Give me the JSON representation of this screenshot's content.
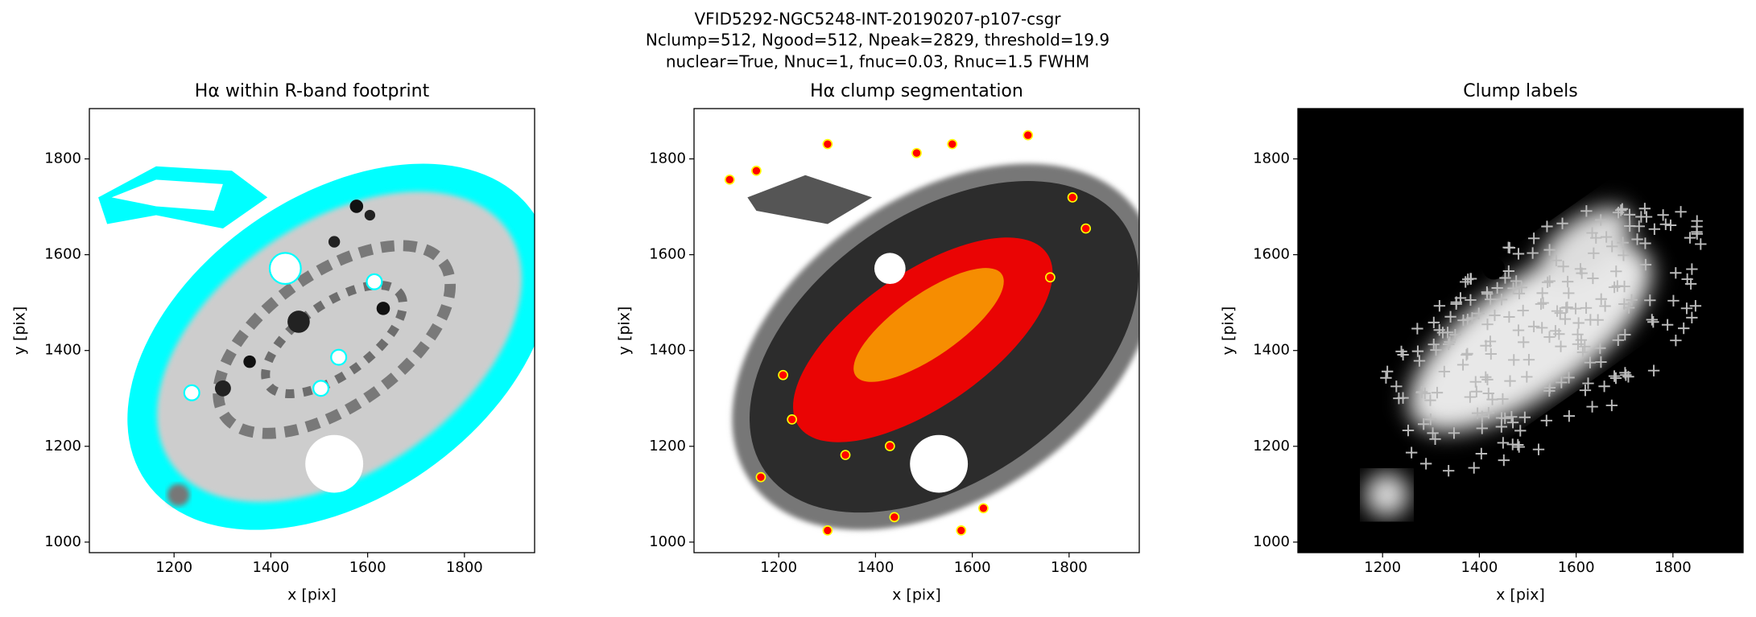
{
  "suptitle": [
    "VFID5292-NGC5248-INT-20190207-p107-csgr",
    "Nclump=512, Ngood=512, Npeak=2829, threshold=19.9",
    "nuclear=True, Nnuc=1, fnuc=0.03, Rnuc=1.5 FWHM"
  ],
  "chart_data": [
    {
      "type": "image",
      "title": "Hα within R-band footprint",
      "xlabel": "x [pix]",
      "ylabel": "y [pix]",
      "xlim": [
        1025,
        1945
      ],
      "ylim": [
        978,
        1905
      ],
      "xticks": [
        1200,
        1400,
        1600,
        1800
      ],
      "yticks": [
        1000,
        1200,
        1400,
        1600,
        1800
      ]
    },
    {
      "type": "image",
      "title": "Hα clump segmentation",
      "xlabel": "x [pix]",
      "ylabel": "y [pix]",
      "xlim": [
        1025,
        1945
      ],
      "ylim": [
        978,
        1905
      ],
      "xticks": [
        1200,
        1400,
        1600,
        1800
      ],
      "yticks": [
        1000,
        1200,
        1400,
        1600,
        1800
      ]
    },
    {
      "type": "image",
      "title": "Clump labels",
      "xlabel": "x [pix]",
      "ylabel": "y [pix]",
      "xlim": [
        1025,
        1945
      ],
      "ylim": [
        978,
        1905
      ],
      "xticks": [
        1200,
        1400,
        1600,
        1800
      ],
      "yticks": [
        1000,
        1200,
        1400,
        1600,
        1800
      ]
    }
  ]
}
